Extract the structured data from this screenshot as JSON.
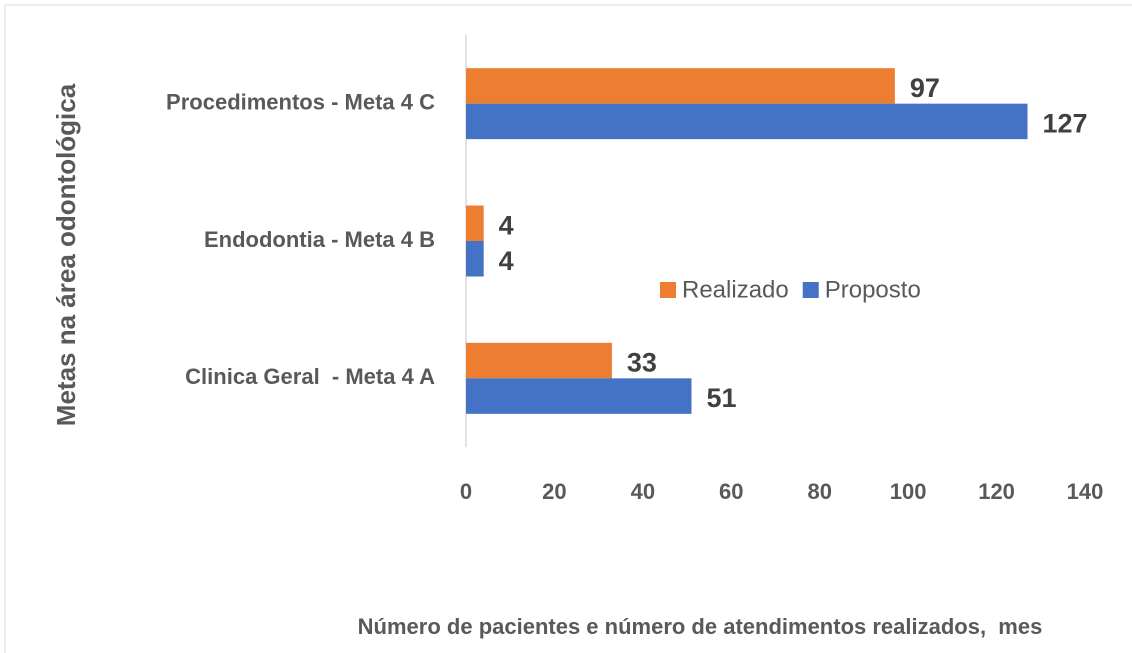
{
  "chart_data": {
    "type": "barh",
    "x_label": "Número de pacientes e número de atendimentos realizados,  mes",
    "y_label": "Metas na área odontológica",
    "categories": [
      "Procedimentos - Meta 4 C",
      "Endodontia - Meta 4 B",
      "Clinica Geral  - Meta 4 A"
    ],
    "series": [
      {
        "name": "Realizado",
        "color": "#ed7d31",
        "values": [
          97,
          4,
          33
        ]
      },
      {
        "name": "Proposto",
        "color": "#4472c4",
        "values": [
          127,
          4,
          51
        ]
      }
    ],
    "xlim": [
      0,
      140
    ],
    "xticks": [
      0,
      20,
      40,
      60,
      80,
      100,
      120,
      140
    ],
    "legend": "center",
    "grid": false
  }
}
